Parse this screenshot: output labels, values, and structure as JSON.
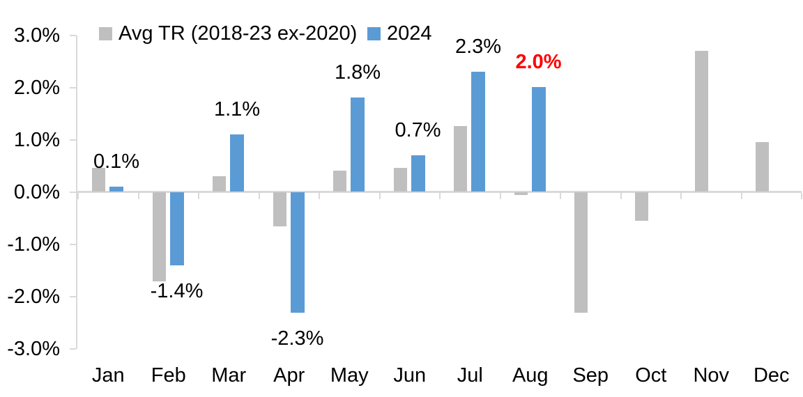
{
  "chart_data": {
    "type": "bar",
    "title": "",
    "categories": [
      "Jan",
      "Feb",
      "Mar",
      "Apr",
      "May",
      "Jun",
      "Jul",
      "Aug",
      "Sep",
      "Oct",
      "Nov",
      "Dec"
    ],
    "series": [
      {
        "key": "avg-tr",
        "name": "Avg TR (2018-23 ex-2020)",
        "color": "#BFBFBF",
        "values": [
          0.45,
          -1.7,
          0.3,
          -0.65,
          0.4,
          0.45,
          1.25,
          -0.05,
          -2.3,
          -0.55,
          2.7,
          0.95
        ]
      },
      {
        "key": "2024",
        "name": "2024",
        "color": "#5B9BD5",
        "values": [
          0.1,
          -1.4,
          1.1,
          -2.3,
          1.8,
          0.7,
          2.3,
          2.0,
          null,
          null,
          null,
          null
        ]
      }
    ],
    "data_labels": [
      {
        "month_index": 0,
        "text": "0.1%",
        "color": "#000000",
        "bold": false
      },
      {
        "month_index": 1,
        "text": "-1.4%",
        "color": "#000000",
        "bold": false
      },
      {
        "month_index": 2,
        "text": "1.1%",
        "color": "#000000",
        "bold": false
      },
      {
        "month_index": 3,
        "text": "-2.3%",
        "color": "#000000",
        "bold": false
      },
      {
        "month_index": 4,
        "text": "1.8%",
        "color": "#000000",
        "bold": false
      },
      {
        "month_index": 5,
        "text": "0.7%",
        "color": "#000000",
        "bold": false
      },
      {
        "month_index": 6,
        "text": "2.3%",
        "color": "#000000",
        "bold": false
      },
      {
        "month_index": 7,
        "text": "2.0%",
        "color": "#FF0000",
        "bold": true
      }
    ],
    "y_ticks": [
      {
        "value": 3,
        "label": "3.0%"
      },
      {
        "value": 2,
        "label": "2.0%"
      },
      {
        "value": 1,
        "label": "1.0%"
      },
      {
        "value": 0,
        "label": "0.0%"
      },
      {
        "value": -1,
        "label": "-1.0%"
      },
      {
        "value": -2,
        "label": "-2.0%"
      },
      {
        "value": -3,
        "label": "-3.0%"
      }
    ],
    "ylim": [
      -3,
      3
    ],
    "xlabel": "",
    "ylabel": "",
    "grid": false,
    "legend_position": "top",
    "axis_color": "#D9D9D9",
    "text_color": "#000000",
    "background": "#FFFFFF"
  }
}
